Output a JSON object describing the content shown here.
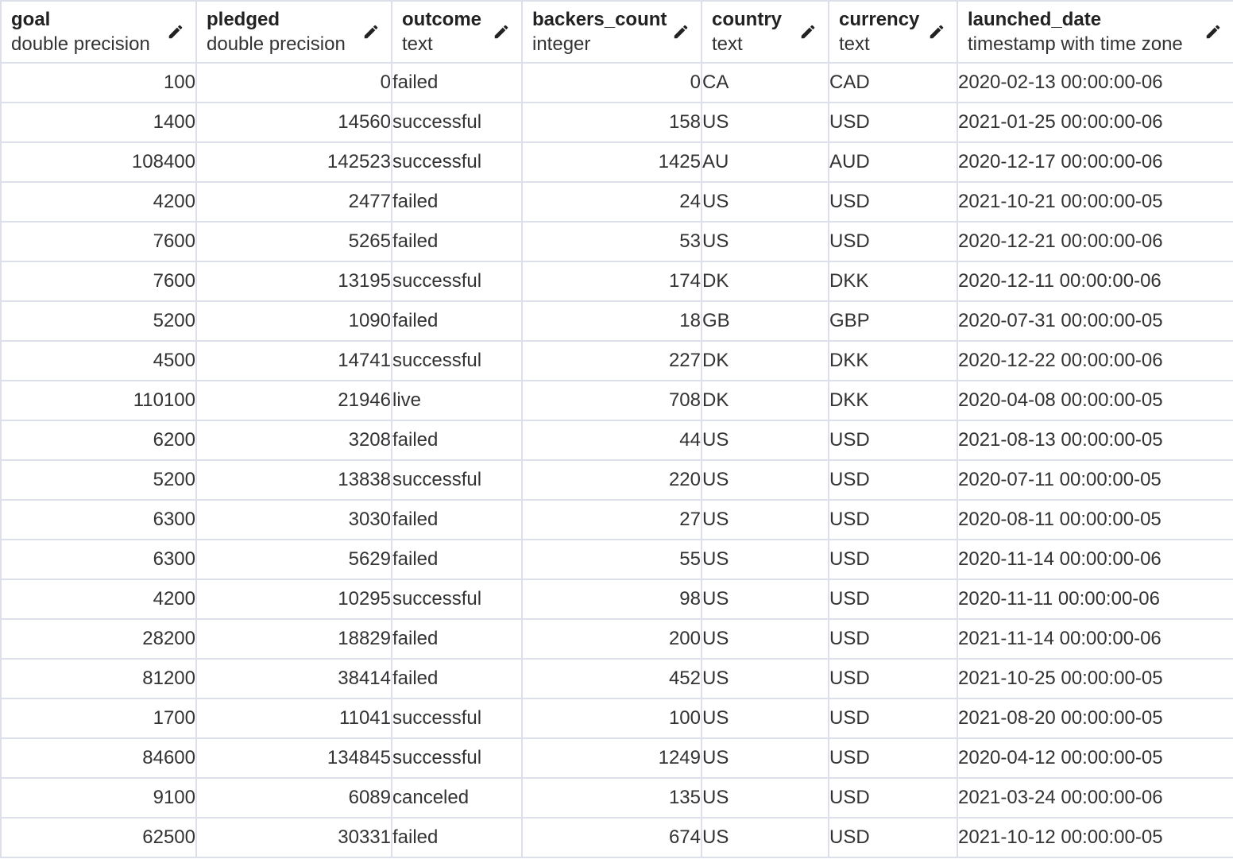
{
  "columns": [
    {
      "name": "goal",
      "type": "double precision",
      "align": "num"
    },
    {
      "name": "pledged",
      "type": "double precision",
      "align": "num"
    },
    {
      "name": "outcome",
      "type": "text",
      "align": "txt"
    },
    {
      "name": "backers_count",
      "type": "integer",
      "align": "num"
    },
    {
      "name": "country",
      "type": "text",
      "align": "txt"
    },
    {
      "name": "currency",
      "type": "text",
      "align": "txt"
    },
    {
      "name": "launched_date",
      "type": "timestamp with time zone",
      "align": "txt"
    }
  ],
  "edit_icon": "pencil-icon",
  "colors": {
    "grid_line": "#dde0e8",
    "text": "#333333",
    "header_text": "#222222"
  },
  "rows": [
    [
      "100",
      "0",
      "failed",
      "0",
      "CA",
      "CAD",
      "2020-02-13 00:00:00-06"
    ],
    [
      "1400",
      "14560",
      "successful",
      "158",
      "US",
      "USD",
      "2021-01-25 00:00:00-06"
    ],
    [
      "108400",
      "142523",
      "successful",
      "1425",
      "AU",
      "AUD",
      "2020-12-17 00:00:00-06"
    ],
    [
      "4200",
      "2477",
      "failed",
      "24",
      "US",
      "USD",
      "2021-10-21 00:00:00-05"
    ],
    [
      "7600",
      "5265",
      "failed",
      "53",
      "US",
      "USD",
      "2020-12-21 00:00:00-06"
    ],
    [
      "7600",
      "13195",
      "successful",
      "174",
      "DK",
      "DKK",
      "2020-12-11 00:00:00-06"
    ],
    [
      "5200",
      "1090",
      "failed",
      "18",
      "GB",
      "GBP",
      "2020-07-31 00:00:00-05"
    ],
    [
      "4500",
      "14741",
      "successful",
      "227",
      "DK",
      "DKK",
      "2020-12-22 00:00:00-06"
    ],
    [
      "110100",
      "21946",
      "live",
      "708",
      "DK",
      "DKK",
      "2020-04-08 00:00:00-05"
    ],
    [
      "6200",
      "3208",
      "failed",
      "44",
      "US",
      "USD",
      "2021-08-13 00:00:00-05"
    ],
    [
      "5200",
      "13838",
      "successful",
      "220",
      "US",
      "USD",
      "2020-07-11 00:00:00-05"
    ],
    [
      "6300",
      "3030",
      "failed",
      "27",
      "US",
      "USD",
      "2020-08-11 00:00:00-05"
    ],
    [
      "6300",
      "5629",
      "failed",
      "55",
      "US",
      "USD",
      "2020-11-14 00:00:00-06"
    ],
    [
      "4200",
      "10295",
      "successful",
      "98",
      "US",
      "USD",
      "2020-11-11 00:00:00-06"
    ],
    [
      "28200",
      "18829",
      "failed",
      "200",
      "US",
      "USD",
      "2021-11-14 00:00:00-06"
    ],
    [
      "81200",
      "38414",
      "failed",
      "452",
      "US",
      "USD",
      "2021-10-25 00:00:00-05"
    ],
    [
      "1700",
      "11041",
      "successful",
      "100",
      "US",
      "USD",
      "2021-08-20 00:00:00-05"
    ],
    [
      "84600",
      "134845",
      "successful",
      "1249",
      "US",
      "USD",
      "2020-04-12 00:00:00-05"
    ],
    [
      "9100",
      "6089",
      "canceled",
      "135",
      "US",
      "USD",
      "2021-03-24 00:00:00-06"
    ],
    [
      "62500",
      "30331",
      "failed",
      "674",
      "US",
      "USD",
      "2021-10-12 00:00:00-05"
    ]
  ]
}
